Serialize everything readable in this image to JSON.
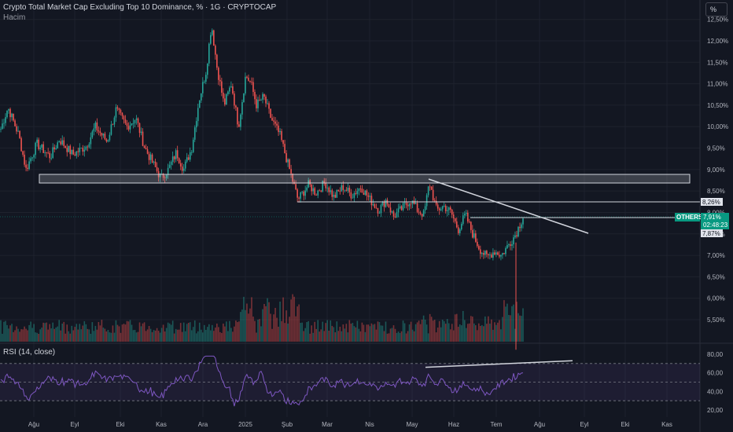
{
  "header": {
    "title": "Crypto Total Market Cap Excluding Top 10 Dominance, % · 1G · CRYPTOCAP",
    "volume_label": "Hacim",
    "rsi_label": "RSI (14, close)",
    "scale_button": "%"
  },
  "colors": {
    "background": "#131722",
    "up": "#26a69a",
    "down": "#ef5350",
    "rsi_line": "#7e57c2",
    "accent": "#089981",
    "drawing": "#d1d4dc"
  },
  "chart_data": [
    {
      "type": "candlestick",
      "price_axis_ticks": [
        "12,50%",
        "12,00%",
        "11,50%",
        "11,00%",
        "10,50%",
        "10,00%",
        "9,50%",
        "9,00%",
        "8,50%",
        "8,00%",
        "7,50%",
        "7,00%",
        "6,50%",
        "6,00%",
        "5,50%"
      ],
      "time_axis_ticks": [
        "Ağu",
        "Eyl",
        "Eki",
        "Kas",
        "Ara",
        "2025",
        "Şub",
        "Mar",
        "Nis",
        "May",
        "Haz",
        "Tem",
        "Ağu",
        "Eyl",
        "Eki",
        "Kas"
      ],
      "keypoints": [
        {
          "t": 0,
          "v": 9.95
        },
        {
          "t": 8,
          "v": 10.45
        },
        {
          "t": 20,
          "v": 9.8
        },
        {
          "t": 28,
          "v": 9.0
        },
        {
          "t": 40,
          "v": 9.6
        },
        {
          "t": 55,
          "v": 9.3
        },
        {
          "t": 65,
          "v": 9.7
        },
        {
          "t": 80,
          "v": 9.35
        },
        {
          "t": 95,
          "v": 9.55
        },
        {
          "t": 105,
          "v": 10.0
        },
        {
          "t": 118,
          "v": 9.65
        },
        {
          "t": 128,
          "v": 10.4
        },
        {
          "t": 140,
          "v": 10.0
        },
        {
          "t": 150,
          "v": 10.2
        },
        {
          "t": 160,
          "v": 9.5
        },
        {
          "t": 170,
          "v": 9.1
        },
        {
          "t": 178,
          "v": 8.8
        },
        {
          "t": 186,
          "v": 9.0
        },
        {
          "t": 195,
          "v": 9.4
        },
        {
          "t": 203,
          "v": 9.0
        },
        {
          "t": 212,
          "v": 9.5
        },
        {
          "t": 220,
          "v": 10.6
        },
        {
          "t": 228,
          "v": 11.3
        },
        {
          "t": 234,
          "v": 12.4
        },
        {
          "t": 240,
          "v": 11.4
        },
        {
          "t": 248,
          "v": 10.5
        },
        {
          "t": 256,
          "v": 11.0
        },
        {
          "t": 264,
          "v": 10.0
        },
        {
          "t": 272,
          "v": 11.2
        },
        {
          "t": 278,
          "v": 11.0
        },
        {
          "t": 284,
          "v": 10.5
        },
        {
          "t": 292,
          "v": 10.7
        },
        {
          "t": 300,
          "v": 10.2
        },
        {
          "t": 310,
          "v": 9.8
        },
        {
          "t": 322,
          "v": 8.9
        },
        {
          "t": 330,
          "v": 8.3
        },
        {
          "t": 342,
          "v": 8.65
        },
        {
          "t": 350,
          "v": 8.45
        },
        {
          "t": 360,
          "v": 8.7
        },
        {
          "t": 370,
          "v": 8.35
        },
        {
          "t": 380,
          "v": 8.6
        },
        {
          "t": 390,
          "v": 8.4
        },
        {
          "t": 400,
          "v": 8.6
        },
        {
          "t": 410,
          "v": 8.3
        },
        {
          "t": 420,
          "v": 8.05
        },
        {
          "t": 428,
          "v": 8.3
        },
        {
          "t": 436,
          "v": 7.9
        },
        {
          "t": 446,
          "v": 8.1
        },
        {
          "t": 455,
          "v": 8.3
        },
        {
          "t": 463,
          "v": 8.05
        },
        {
          "t": 470,
          "v": 7.95
        },
        {
          "t": 476,
          "v": 8.7
        },
        {
          "t": 484,
          "v": 8.05
        },
        {
          "t": 492,
          "v": 8.15
        },
        {
          "t": 500,
          "v": 8.0
        },
        {
          "t": 508,
          "v": 7.6
        },
        {
          "t": 516,
          "v": 7.95
        },
        {
          "t": 524,
          "v": 7.5
        },
        {
          "t": 532,
          "v": 7.15
        },
        {
          "t": 540,
          "v": 6.95
        },
        {
          "t": 548,
          "v": 7.1
        },
        {
          "t": 556,
          "v": 7.0
        },
        {
          "t": 564,
          "v": 7.25
        },
        {
          "t": 572,
          "v": 7.5
        },
        {
          "t": 580,
          "v": 7.9
        }
      ],
      "last_price": "7,91%",
      "countdown": "02:48:23",
      "symbol_label": "OTHERS.D",
      "level_labels": [
        "8,26%",
        "7,87%"
      ]
    },
    {
      "type": "line",
      "name": "RSI (14, close)",
      "axis_ticks": [
        "80,00",
        "60,00",
        "40,00",
        "20,00"
      ],
      "bands": [
        70,
        50,
        30
      ],
      "ylim": [
        15,
        85
      ]
    }
  ]
}
